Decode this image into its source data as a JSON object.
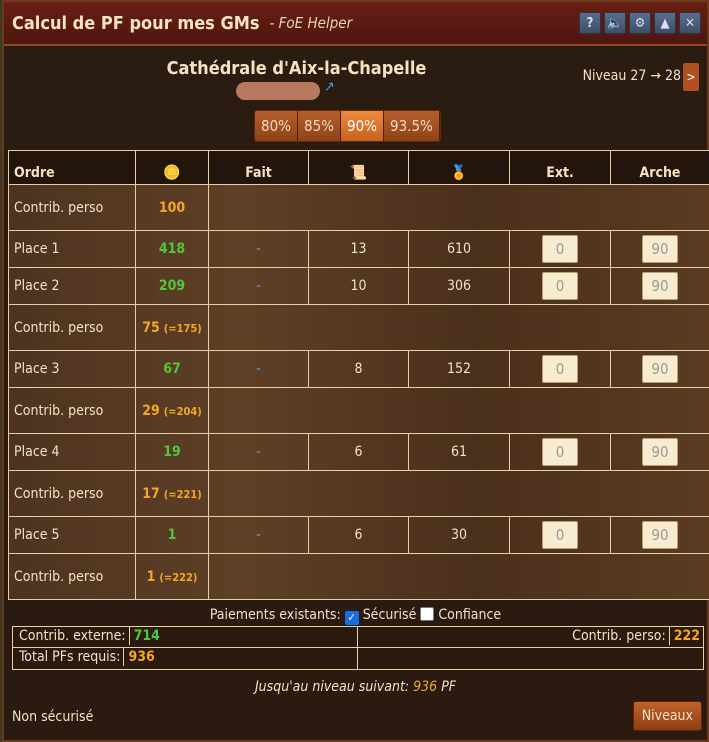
{
  "window": {
    "title": "Calcul de PF pour mes GMs",
    "subtitle": "- FoE Helper",
    "buttons": [
      "?",
      "🔈",
      "⚙",
      "▲",
      "✕"
    ]
  },
  "gm": {
    "name": "Cathédrale d'Aix-la-Chapelle",
    "link_icon": "external-link-icon",
    "level": "Niveau 27 → 28",
    "next_label": ">"
  },
  "percent": {
    "options": [
      "80%",
      "85%",
      "90%",
      "93.5%"
    ],
    "selected": "90%"
  },
  "table": {
    "headers": {
      "ordre": "Ordre",
      "fp_icon": "forge-points-icon",
      "fait": "Fait",
      "bp_icon": "blueprint-icon",
      "medal_icon": "medal-icon",
      "ext": "Ext.",
      "arche": "Arche"
    },
    "rows": [
      {
        "type": "contrib",
        "label": "Contrib. perso",
        "value": "100",
        "cum": ""
      },
      {
        "type": "place",
        "label": "Place 1",
        "fp": "418",
        "fait": "-",
        "bp": "13",
        "medals": "610",
        "ext": "0",
        "arche": "90"
      },
      {
        "type": "place",
        "label": "Place 2",
        "fp": "209",
        "fait": "-",
        "bp": "10",
        "medals": "306",
        "ext": "0",
        "arche": "90"
      },
      {
        "type": "contrib",
        "label": "Contrib. perso",
        "value": "75",
        "cum": "(=175)"
      },
      {
        "type": "place",
        "label": "Place 3",
        "fp": "67",
        "fait": "-",
        "bp": "8",
        "medals": "152",
        "ext": "0",
        "arche": "90"
      },
      {
        "type": "contrib",
        "label": "Contrib. perso",
        "value": "29",
        "cum": "(=204)"
      },
      {
        "type": "place",
        "label": "Place 4",
        "fp": "19",
        "fait": "-",
        "bp": "6",
        "medals": "61",
        "ext": "0",
        "arche": "90"
      },
      {
        "type": "contrib",
        "label": "Contrib. perso",
        "value": "17",
        "cum": "(=221)"
      },
      {
        "type": "place",
        "label": "Place 5",
        "fp": "1",
        "fait": "-",
        "bp": "6",
        "medals": "30",
        "ext": "0",
        "arche": "90"
      },
      {
        "type": "contrib",
        "label": "Contrib. perso",
        "value": "1",
        "cum": "(=222)"
      }
    ]
  },
  "footer": {
    "payments_label": "Paiements existants:",
    "secure_label": "Sécurisé",
    "secure_checked": true,
    "trust_label": "Confiance",
    "trust_checked": false,
    "ext_label": "Contrib. externe:",
    "ext_value": "714",
    "perso_label": "Contrib. perso:",
    "perso_value": "222",
    "total_label": "Total PFs requis:",
    "total_value": "936",
    "next_label": "Jusqu'au niveau suivant:",
    "next_value": "936",
    "next_unit": "PF",
    "status": "Non sécurisé",
    "levels_button": "Niveaux"
  }
}
